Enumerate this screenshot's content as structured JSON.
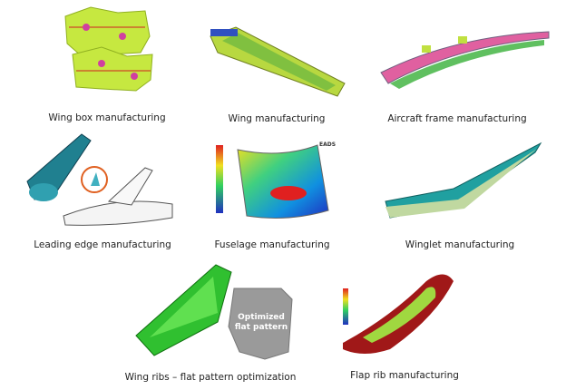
{
  "panels": [
    {
      "caption": "Wing box manufacturing"
    },
    {
      "caption": "Wing manufacturing"
    },
    {
      "caption": "Aircraft frame manufacturing"
    },
    {
      "caption": "Leading edge manufacturing"
    },
    {
      "caption": "Fuselage manufacturing"
    },
    {
      "caption": "Winglet manufacturing"
    },
    {
      "caption": "Wing ribs – flat pattern optimization"
    },
    {
      "caption": "Flap rib manufacturing"
    }
  ],
  "flat_pattern_label": "Optimized flat pattern",
  "logo": "EADS"
}
